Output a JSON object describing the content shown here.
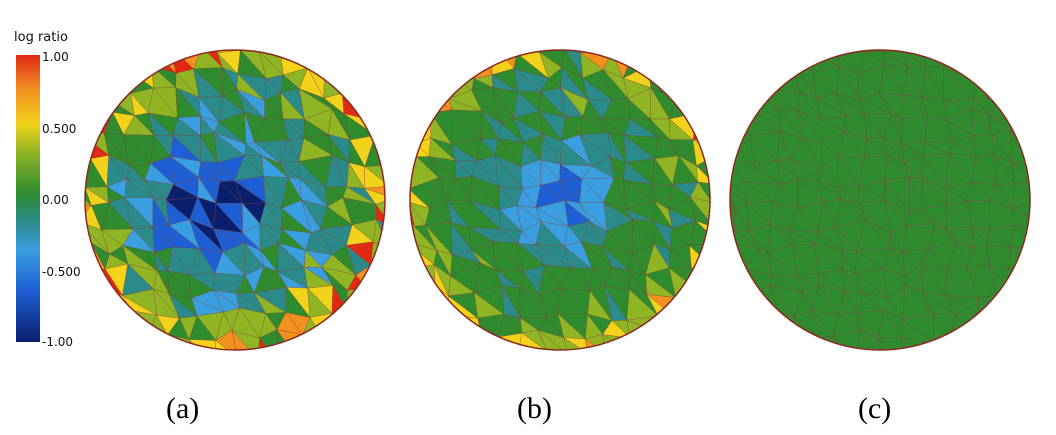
{
  "legend": {
    "title": "log ratio",
    "ticks": [
      "1.00",
      "0.500",
      "0.00",
      "-0.500",
      "-1.00"
    ],
    "colormap": [
      "#0a1f6e",
      "#1f5fd6",
      "#3a9fe0",
      "#2b8a8a",
      "#2e8b2e",
      "#8fb524",
      "#f2d21a",
      "#f29020",
      "#e02a14"
    ]
  },
  "panels": [
    {
      "caption": "(a)",
      "palette": "wide"
    },
    {
      "caption": "(b)",
      "palette": "medium"
    },
    {
      "caption": "(c)",
      "palette": "narrow"
    }
  ],
  "colors": {
    "mesh_edge": "#7a3b2a",
    "sphere_edge": "#8a2a20"
  }
}
